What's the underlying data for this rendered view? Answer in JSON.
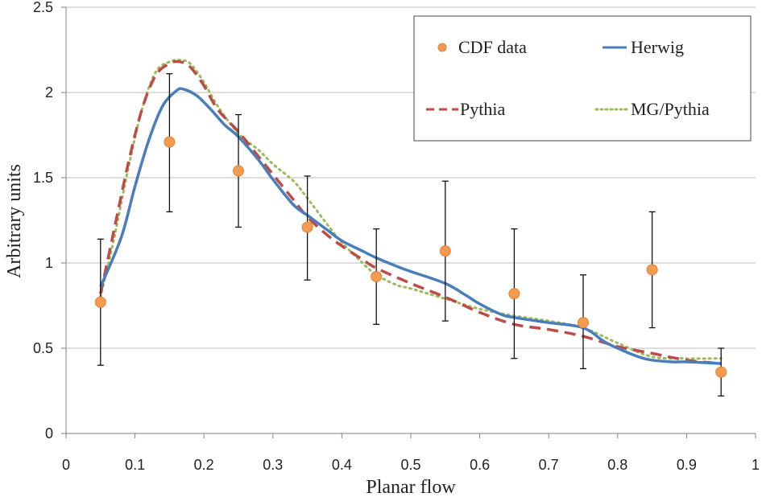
{
  "chart_data": {
    "type": "line",
    "title": "",
    "xlabel": "Planar flow",
    "ylabel": "Arbitrary units",
    "xlim": [
      0,
      1
    ],
    "ylim": [
      0,
      2.5
    ],
    "x_ticks": [
      "0",
      "0.1",
      "0.2",
      "0.3",
      "0.4",
      "0.5",
      "0.6",
      "0.7",
      "0.8",
      "0.9",
      "1"
    ],
    "y_ticks": [
      "0",
      "0.5",
      "1",
      "1.5",
      "2",
      "2.5"
    ],
    "grid": "horizontal",
    "legend_position": "top-right",
    "data_points": {
      "name": "CDF data",
      "color": "#f39b4e",
      "x": [
        0.05,
        0.15,
        0.25,
        0.35,
        0.45,
        0.55,
        0.65,
        0.75,
        0.85,
        0.95
      ],
      "y": [
        0.77,
        1.71,
        1.54,
        1.21,
        0.92,
        1.07,
        0.82,
        0.65,
        0.96,
        0.36
      ],
      "err_low": [
        0.4,
        1.3,
        1.21,
        0.9,
        0.64,
        0.66,
        0.44,
        0.38,
        0.62,
        0.22
      ],
      "err_high": [
        1.14,
        2.11,
        1.87,
        1.51,
        1.2,
        1.48,
        1.2,
        0.93,
        1.3,
        0.5
      ]
    },
    "series": [
      {
        "name": "Herwig",
        "color": "#4a7ebb",
        "style": "solid",
        "x": [
          0.05,
          0.08,
          0.1,
          0.12,
          0.14,
          0.16,
          0.17,
          0.19,
          0.21,
          0.23,
          0.25,
          0.28,
          0.3,
          0.33,
          0.35,
          0.38,
          0.4,
          0.43,
          0.45,
          0.48,
          0.5,
          0.55,
          0.58,
          0.6,
          0.63,
          0.65,
          0.7,
          0.75,
          0.78,
          0.8,
          0.83,
          0.85,
          0.88,
          0.9,
          0.95
        ],
        "y": [
          0.86,
          1.15,
          1.45,
          1.72,
          1.92,
          2.01,
          2.02,
          1.98,
          1.9,
          1.81,
          1.74,
          1.6,
          1.49,
          1.34,
          1.28,
          1.19,
          1.13,
          1.07,
          1.03,
          0.98,
          0.95,
          0.88,
          0.81,
          0.76,
          0.7,
          0.68,
          0.65,
          0.62,
          0.54,
          0.5,
          0.45,
          0.43,
          0.42,
          0.42,
          0.41
        ]
      },
      {
        "name": "Pythia",
        "color": "#be4b48",
        "style": "dashed",
        "x": [
          0.05,
          0.07,
          0.09,
          0.11,
          0.13,
          0.15,
          0.165,
          0.18,
          0.2,
          0.22,
          0.25,
          0.28,
          0.3,
          0.33,
          0.35,
          0.38,
          0.4,
          0.43,
          0.45,
          0.5,
          0.55,
          0.6,
          0.65,
          0.7,
          0.75,
          0.8,
          0.85,
          0.9,
          0.95
        ],
        "y": [
          0.82,
          1.2,
          1.58,
          1.9,
          2.1,
          2.17,
          2.18,
          2.15,
          2.04,
          1.9,
          1.77,
          1.62,
          1.52,
          1.37,
          1.27,
          1.16,
          1.1,
          1.02,
          0.97,
          0.88,
          0.8,
          0.71,
          0.64,
          0.61,
          0.57,
          0.51,
          0.47,
          0.43,
          0.41
        ]
      },
      {
        "name": "MG/Pythia",
        "color": "#9bbb59",
        "style": "dotted",
        "x": [
          0.05,
          0.07,
          0.09,
          0.11,
          0.13,
          0.15,
          0.165,
          0.18,
          0.2,
          0.22,
          0.25,
          0.28,
          0.3,
          0.33,
          0.35,
          0.38,
          0.4,
          0.43,
          0.45,
          0.48,
          0.5,
          0.55,
          0.6,
          0.65,
          0.7,
          0.75,
          0.8,
          0.85,
          0.9,
          0.95
        ],
        "y": [
          0.8,
          1.15,
          1.55,
          1.9,
          2.12,
          2.18,
          2.19,
          2.17,
          2.06,
          1.92,
          1.76,
          1.66,
          1.58,
          1.48,
          1.38,
          1.22,
          1.12,
          1.0,
          0.93,
          0.87,
          0.85,
          0.79,
          0.73,
          0.69,
          0.66,
          0.62,
          0.53,
          0.45,
          0.44,
          0.44
        ]
      }
    ]
  }
}
